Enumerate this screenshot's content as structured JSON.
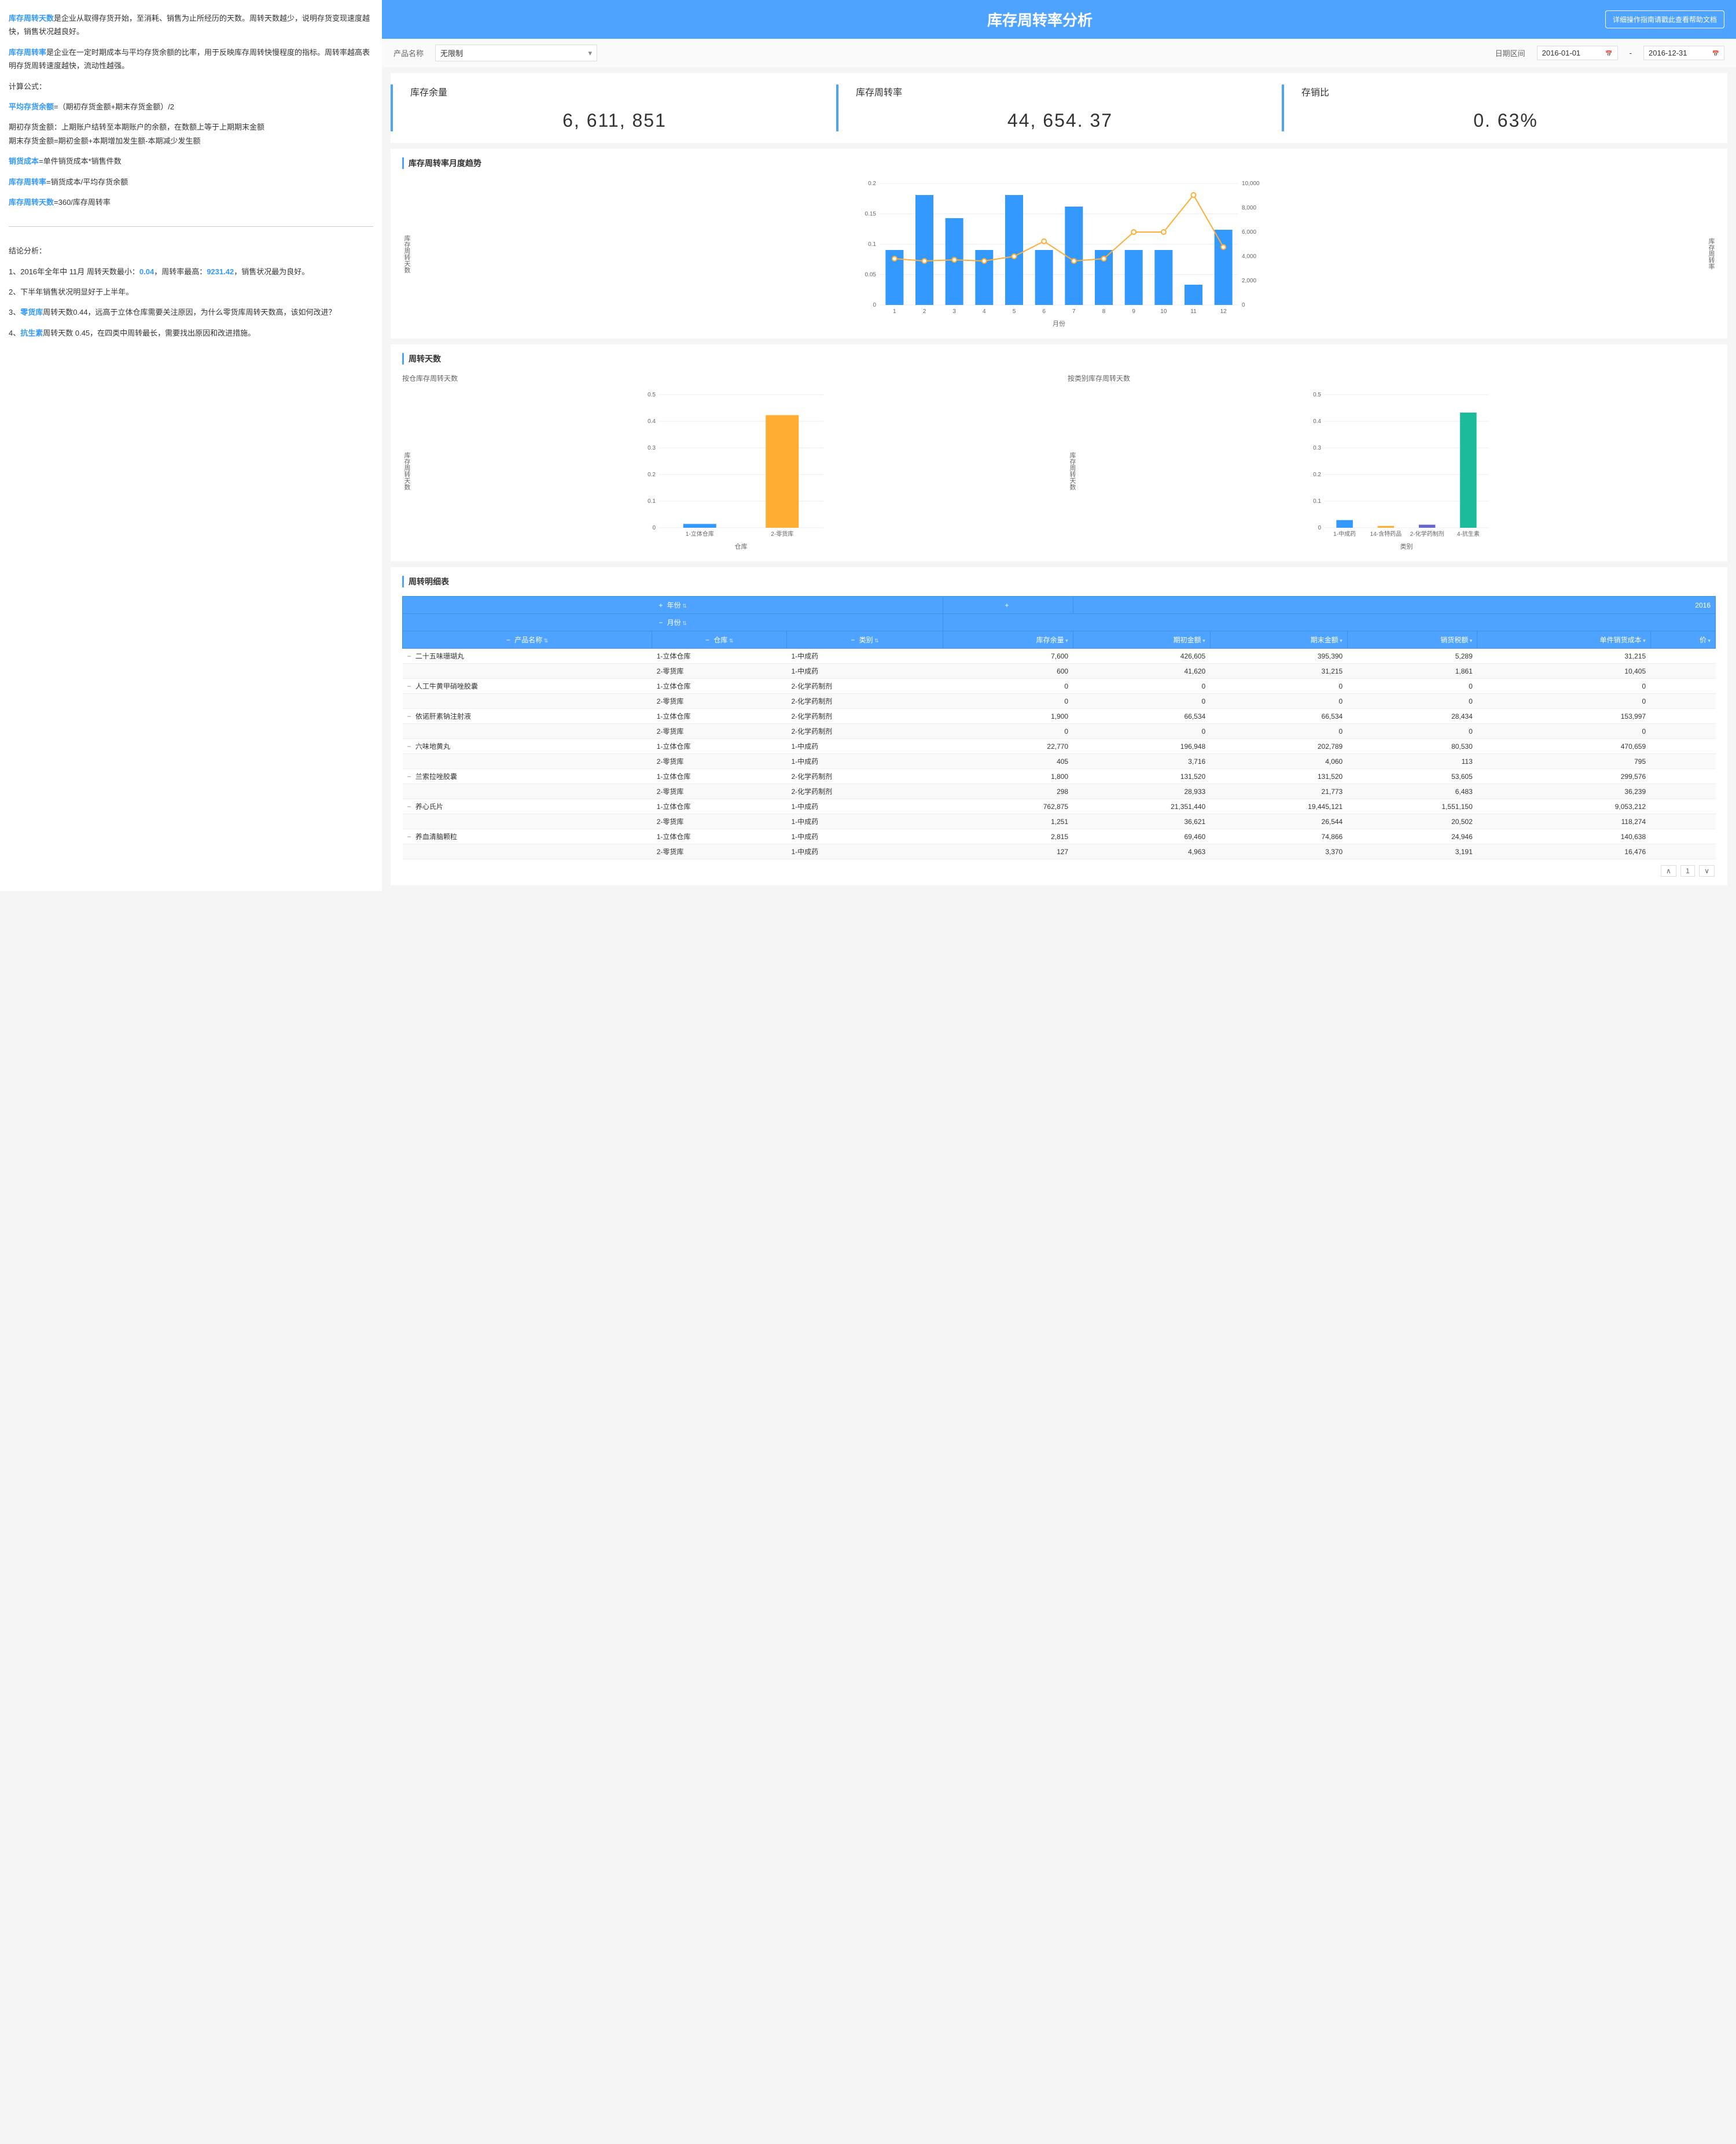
{
  "sidebar": {
    "para1_term": "库存周转天数",
    "para1_text": "是企业从取得存货开始，至消耗、销售为止所经历的天数。周转天数越少，说明存货变现速度越快，销售状况越良好。",
    "para2_term": "库存周转率",
    "para2_text": "是企业在一定时期成本与平均存货余额的比率，用于反映库存周转快慢程度的指标。周转率越高表明存货周转速度越快，流动性越强。",
    "formula_label": "计算公式：",
    "avg_label": "平均存货余额",
    "avg_formula": "=（期初存货金额+期末存货金额）/2",
    "para4": "期初存货金额：上期账户结转至本期账户的余额，在数额上等于上期期末金额",
    "para5": "期末存货金额=期初金额+本期增加发生额-本期减少发生额",
    "cogs_label": "销货成本",
    "cogs_formula": "=单件销货成本*销售件数",
    "turnover_label": "库存周转率",
    "turnover_formula": "=销货成本/平均存货余额",
    "days_label": "库存周转天数",
    "days_formula": "=360/库存周转率",
    "conclusion_label": "结论分析：",
    "c1a": "1、2016年全年中 11月 周转天数最小：",
    "c1_v1": "0.04",
    "c1b": "，周转率最高：",
    "c1_v2": "9231.42",
    "c1c": "，销售状况最为良好。",
    "c2": "2、下半年销售状况明显好于上半年。",
    "c3a": "3、",
    "c3_term": "零货库",
    "c3b": "周转天数0.44，远高于立体仓库需要关注原因，为什么零货库周转天数高，该如何改进？",
    "c4a": "4、",
    "c4_term": "抗生素",
    "c4b": "周转天数 0.45，在四类中周转最长，需要找出原因和改进措施。"
  },
  "header": {
    "title": "库存周转率分析",
    "help": "详细操作指南请戳此查看帮助文档"
  },
  "filters": {
    "product_label": "产品名称",
    "product_value": "无限制",
    "date_label": "日期区间",
    "date_from": "2016-01-01",
    "date_to": "2016-12-31",
    "sep": "-"
  },
  "kpis": {
    "balance_label": "库存余量",
    "balance_value": "6, 611, 851",
    "turnover_label": "库存周转率",
    "turnover_value": "44, 654. 37",
    "ratio_label": "存销比",
    "ratio_value": "0. 63%"
  },
  "chart_monthly": {
    "title": "库存周转率月度趋势",
    "months": [
      "1",
      "2",
      "3",
      "4",
      "5",
      "6",
      "7",
      "8",
      "9",
      "10",
      "11",
      "12"
    ],
    "bar_values": [
      0.095,
      0.19,
      0.15,
      0.095,
      0.19,
      0.095,
      0.17,
      0.095,
      0.095,
      0.095,
      0.035,
      0.13
    ],
    "line_values": [
      4000,
      3800,
      3900,
      3800,
      4200,
      5500,
      3800,
      4000,
      6300,
      6300,
      9500,
      5000
    ],
    "y_left_label": "库存周转天数",
    "y_right_label": "库存周转率",
    "x_label": "月份",
    "y_left_ticks": [
      "0",
      "0.05",
      "0.1",
      "0.15",
      "0.2"
    ],
    "y_right_ticks": [
      "0",
      "2,000",
      "4,000",
      "6,000",
      "8,000",
      "10,000"
    ],
    "y_left_max": 0.21,
    "y_right_max": 10500,
    "bar_color": "#3399ff",
    "line_color": "#ffad33",
    "grid_color": "#eeeeee"
  },
  "chart_days": {
    "title": "周转天数",
    "sub1_title": "按仓库存周转天数",
    "sub1_cats": [
      "1-立体仓库",
      "2-零货库"
    ],
    "sub1_vals": [
      0.015,
      0.44
    ],
    "sub1_colors": [
      "#3399ff",
      "#ffad33"
    ],
    "sub1_xlabel": "仓库",
    "sub2_title": "按类别库存周转天数",
    "sub2_cats": [
      "1-中成药",
      "14-含特药品",
      "2-化学药制剂",
      "4-抗生素"
    ],
    "sub2_vals": [
      0.03,
      0.007,
      0.012,
      0.45
    ],
    "sub2_colors": [
      "#3399ff",
      "#ffad33",
      "#6666cc",
      "#1abc9c"
    ],
    "sub2_xlabel": "类别",
    "y_label": "库存周转天数",
    "y_ticks": [
      "0",
      "0.1",
      "0.2",
      "0.3",
      "0.4",
      "0.5"
    ],
    "y_max": 0.52
  },
  "table": {
    "title": "周转明细表",
    "group1": "年份",
    "group2": "月份",
    "year_header": "2016",
    "cols": [
      "产品名称",
      "仓库",
      "类别",
      "库存余量",
      "期初金额",
      "期末金额",
      "销货税额",
      "单件销货成本",
      "价"
    ],
    "rows": [
      {
        "prod": "二十五味珊瑚丸",
        "wh": "1-立体仓库",
        "cat": "1-中成药",
        "v": [
          "7,600",
          "426,605",
          "395,390",
          "5,289",
          "31,215",
          ""
        ]
      },
      {
        "prod": "",
        "wh": "2-零货库",
        "cat": "1-中成药",
        "v": [
          "600",
          "41,620",
          "31,215",
          "1,861",
          "10,405",
          ""
        ]
      },
      {
        "prod": "人工牛黄甲硝唑胶囊",
        "wh": "1-立体仓库",
        "cat": "2-化学药制剂",
        "v": [
          "0",
          "0",
          "0",
          "0",
          "0",
          ""
        ]
      },
      {
        "prod": "",
        "wh": "2-零货库",
        "cat": "2-化学药制剂",
        "v": [
          "0",
          "0",
          "0",
          "0",
          "0",
          ""
        ]
      },
      {
        "prod": "依诺肝素钠注射液",
        "wh": "1-立体仓库",
        "cat": "2-化学药制剂",
        "v": [
          "1,900",
          "66,534",
          "66,534",
          "28,434",
          "153,997",
          ""
        ]
      },
      {
        "prod": "",
        "wh": "2-零货库",
        "cat": "2-化学药制剂",
        "v": [
          "0",
          "0",
          "0",
          "0",
          "0",
          ""
        ]
      },
      {
        "prod": "六味地黄丸",
        "wh": "1-立体仓库",
        "cat": "1-中成药",
        "v": [
          "22,770",
          "196,948",
          "202,789",
          "80,530",
          "470,659",
          ""
        ]
      },
      {
        "prod": "",
        "wh": "2-零货库",
        "cat": "1-中成药",
        "v": [
          "405",
          "3,716",
          "4,060",
          "113",
          "795",
          ""
        ]
      },
      {
        "prod": "兰索拉唑胶囊",
        "wh": "1-立体仓库",
        "cat": "2-化学药制剂",
        "v": [
          "1,800",
          "131,520",
          "131,520",
          "53,605",
          "299,576",
          ""
        ]
      },
      {
        "prod": "",
        "wh": "2-零货库",
        "cat": "2-化学药制剂",
        "v": [
          "298",
          "28,933",
          "21,773",
          "6,483",
          "36,239",
          ""
        ]
      },
      {
        "prod": "养心氏片",
        "wh": "1-立体仓库",
        "cat": "1-中成药",
        "v": [
          "762,875",
          "21,351,440",
          "19,445,121",
          "1,551,150",
          "9,053,212",
          ""
        ]
      },
      {
        "prod": "",
        "wh": "2-零货库",
        "cat": "1-中成药",
        "v": [
          "1,251",
          "36,621",
          "26,544",
          "20,502",
          "118,274",
          ""
        ]
      },
      {
        "prod": "养血清脑颗粒",
        "wh": "1-立体仓库",
        "cat": "1-中成药",
        "v": [
          "2,815",
          "69,460",
          "74,866",
          "24,946",
          "140,638",
          ""
        ]
      },
      {
        "prod": "",
        "wh": "2-零货库",
        "cat": "1-中成药",
        "v": [
          "127",
          "4,963",
          "3,370",
          "3,191",
          "16,476",
          ""
        ]
      }
    ]
  },
  "pager": {
    "prev": "∧",
    "page": "1",
    "next": "∨"
  }
}
